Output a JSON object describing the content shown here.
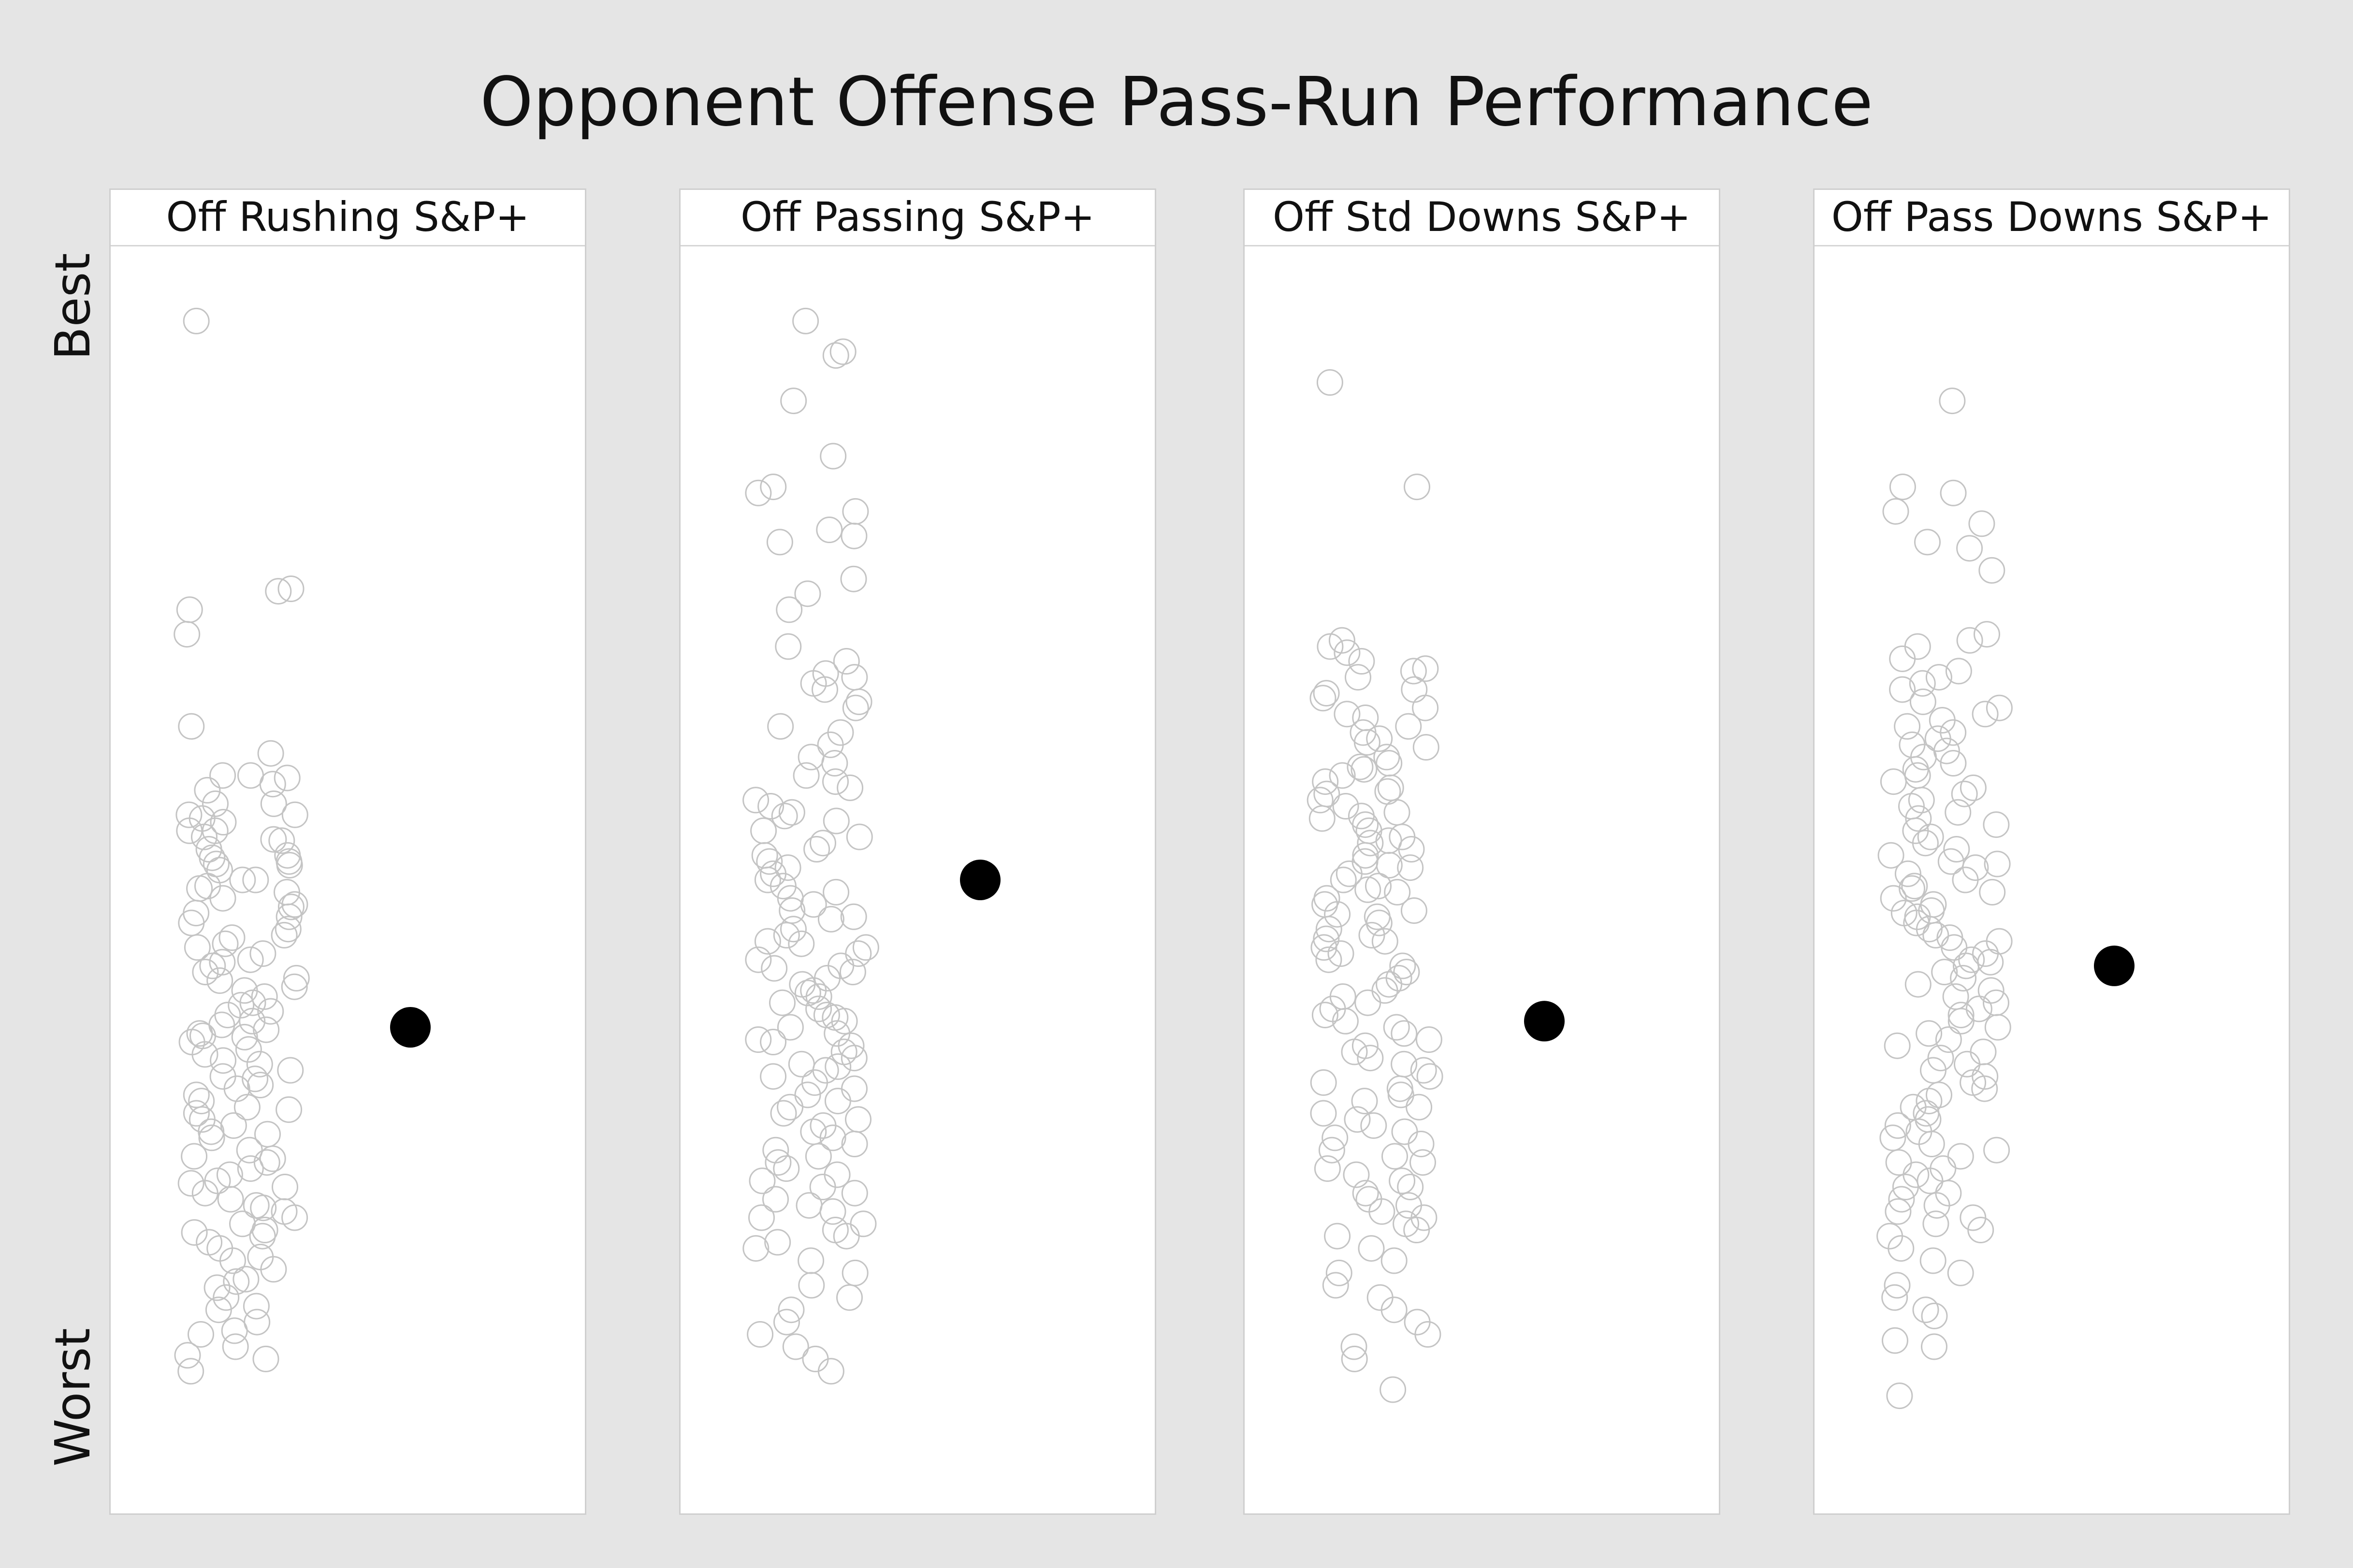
{
  "title": "Opponent Offense Pass-Run Performance",
  "y_labels": {
    "top": "Best",
    "bottom": "Worst"
  },
  "colors": {
    "background": "#e5e5e5",
    "panel": "#ffffff",
    "circle_outline": "#c4c4c4",
    "highlight": "#000000"
  },
  "chart_data": {
    "type": "scatter",
    "title": "Opponent Offense Pass-Run Performance",
    "ylabel_top": "Best",
    "ylabel_bottom": "Worst",
    "y_scale": "relative rank (1 = best, 0 = worst)",
    "grid": false,
    "panels": [
      {
        "name": "Off Rushing S&P+",
        "highlight": 0.38,
        "points": [
          0.955,
          0.735,
          0.737,
          0.72,
          0.7,
          0.625,
          0.603,
          0.585,
          0.583,
          0.578,
          0.585,
          0.573,
          0.562,
          0.562,
          0.553,
          0.55,
          0.547,
          0.54,
          0.54,
          0.535,
          0.532,
          0.525,
          0.52,
          0.518,
          0.515,
          0.512,
          0.508,
          0.5,
          0.5,
          0.495,
          0.49,
          0.485,
          0.48,
          0.478,
          0.47,
          0.465,
          0.46,
          0.455,
          0.448,
          0.445,
          0.44,
          0.435,
          0.43,
          0.425,
          0.42,
          0.418,
          0.41,
          0.405,
          0.4,
          0.398,
          0.39,
          0.385,
          0.382,
          0.378,
          0.375,
          0.372,
          0.368,
          0.362,
          0.358,
          0.35,
          0.345,
          0.34,
          0.338,
          0.33,
          0.325,
          0.32,
          0.315,
          0.31,
          0.305,
          0.3,
          0.295,
          0.29,
          0.28,
          0.275,
          0.27,
          0.265,
          0.26,
          0.255,
          0.25,
          0.245,
          0.24,
          0.235,
          0.23,
          0.225,
          0.22,
          0.215,
          0.21,
          0.205,
          0.2,
          0.19,
          0.183,
          0.175,
          0.168,
          0.16,
          0.15,
          0.14,
          0.13,
          0.12,
          0.11,
          0.1,
          0.113,
          0.133,
          0.153,
          0.173,
          0.193,
          0.213,
          0.233,
          0.253,
          0.273,
          0.293,
          0.313,
          0.333,
          0.353,
          0.373,
          0.393,
          0.413,
          0.433,
          0.453,
          0.473,
          0.493,
          0.513,
          0.533,
          0.553
        ]
      },
      {
        "name": "Off Passing S&P+",
        "highlight": 0.5,
        "points": [
          0.955,
          0.93,
          0.927,
          0.89,
          0.845,
          0.82,
          0.815,
          0.8,
          0.785,
          0.78,
          0.775,
          0.745,
          0.733,
          0.72,
          0.69,
          0.678,
          0.668,
          0.665,
          0.66,
          0.655,
          0.645,
          0.64,
          0.625,
          0.62,
          0.61,
          0.6,
          0.595,
          0.585,
          0.58,
          0.575,
          0.565,
          0.56,
          0.555,
          0.552,
          0.548,
          0.54,
          0.535,
          0.53,
          0.525,
          0.52,
          0.515,
          0.51,
          0.505,
          0.5,
          0.495,
          0.49,
          0.485,
          0.48,
          0.475,
          0.47,
          0.46,
          0.455,
          0.45,
          0.445,
          0.44,
          0.435,
          0.43,
          0.425,
          0.42,
          0.415,
          0.41,
          0.405,
          0.4,
          0.395,
          0.39,
          0.385,
          0.38,
          0.375,
          0.37,
          0.365,
          0.36,
          0.355,
          0.35,
          0.345,
          0.34,
          0.335,
          0.33,
          0.325,
          0.32,
          0.315,
          0.31,
          0.305,
          0.3,
          0.295,
          0.29,
          0.285,
          0.28,
          0.275,
          0.27,
          0.265,
          0.26,
          0.255,
          0.25,
          0.245,
          0.24,
          0.235,
          0.23,
          0.225,
          0.22,
          0.215,
          0.21,
          0.205,
          0.2,
          0.19,
          0.18,
          0.17,
          0.16,
          0.15,
          0.14,
          0.13,
          0.12,
          0.11,
          0.1,
          0.348,
          0.368,
          0.388,
          0.408,
          0.428,
          0.448,
          0.468
        ]
      },
      {
        "name": "Off Std Downs S&P+",
        "highlight": 0.385,
        "points": [
          0.905,
          0.82,
          0.695,
          0.69,
          0.685,
          0.678,
          0.67,
          0.665,
          0.655,
          0.648,
          0.64,
          0.635,
          0.625,
          0.62,
          0.615,
          0.608,
          0.6,
          0.595,
          0.59,
          0.585,
          0.58,
          0.575,
          0.57,
          0.565,
          0.56,
          0.555,
          0.55,
          0.545,
          0.54,
          0.535,
          0.53,
          0.525,
          0.52,
          0.515,
          0.51,
          0.505,
          0.5,
          0.495,
          0.49,
          0.485,
          0.48,
          0.475,
          0.47,
          0.465,
          0.46,
          0.455,
          0.45,
          0.445,
          0.44,
          0.435,
          0.43,
          0.425,
          0.42,
          0.415,
          0.41,
          0.405,
          0.4,
          0.395,
          0.39,
          0.385,
          0.38,
          0.375,
          0.37,
          0.365,
          0.36,
          0.355,
          0.35,
          0.345,
          0.34,
          0.335,
          0.33,
          0.325,
          0.32,
          0.315,
          0.31,
          0.305,
          0.3,
          0.295,
          0.29,
          0.285,
          0.28,
          0.275,
          0.27,
          0.265,
          0.26,
          0.255,
          0.25,
          0.245,
          0.24,
          0.235,
          0.23,
          0.225,
          0.22,
          0.215,
          0.21,
          0.2,
          0.19,
          0.18,
          0.17,
          0.16,
          0.15,
          0.14,
          0.13,
          0.12,
          0.11,
          0.085,
          0.452,
          0.472,
          0.492,
          0.512,
          0.532,
          0.552,
          0.572,
          0.592,
          0.612,
          0.632,
          0.652,
          0.672
        ]
      },
      {
        "name": "Off Pass Downs S&P+",
        "highlight": 0.43,
        "points": [
          0.89,
          0.82,
          0.815,
          0.8,
          0.79,
          0.775,
          0.77,
          0.752,
          0.7,
          0.695,
          0.69,
          0.68,
          0.67,
          0.665,
          0.66,
          0.655,
          0.645,
          0.64,
          0.635,
          0.63,
          0.625,
          0.62,
          0.615,
          0.61,
          0.605,
          0.6,
          0.595,
          0.59,
          0.585,
          0.58,
          0.575,
          0.57,
          0.565,
          0.56,
          0.555,
          0.55,
          0.545,
          0.54,
          0.535,
          0.53,
          0.525,
          0.52,
          0.515,
          0.51,
          0.505,
          0.5,
          0.495,
          0.49,
          0.485,
          0.48,
          0.475,
          0.47,
          0.465,
          0.46,
          0.455,
          0.45,
          0.445,
          0.44,
          0.435,
          0.43,
          0.425,
          0.42,
          0.415,
          0.41,
          0.405,
          0.4,
          0.395,
          0.39,
          0.385,
          0.38,
          0.375,
          0.37,
          0.365,
          0.36,
          0.355,
          0.35,
          0.345,
          0.34,
          0.335,
          0.33,
          0.325,
          0.32,
          0.315,
          0.31,
          0.305,
          0.3,
          0.295,
          0.29,
          0.285,
          0.28,
          0.275,
          0.27,
          0.265,
          0.26,
          0.255,
          0.25,
          0.245,
          0.24,
          0.235,
          0.23,
          0.225,
          0.22,
          0.215,
          0.21,
          0.2,
          0.19,
          0.18,
          0.17,
          0.16,
          0.15,
          0.145,
          0.125,
          0.12,
          0.08,
          0.433,
          0.453,
          0.473,
          0.493,
          0.513
        ]
      }
    ]
  }
}
